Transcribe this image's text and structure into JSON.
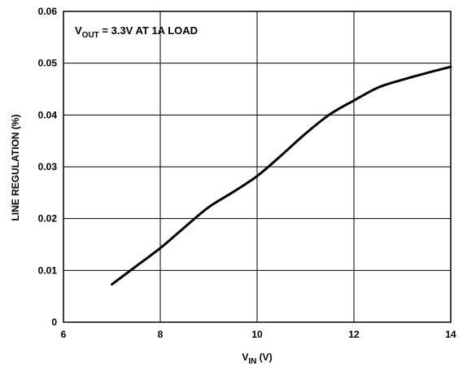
{
  "chart_data": {
    "type": "line",
    "title": "",
    "annotation": {
      "prefix": "V",
      "sub": "OUT",
      "suffix": " = 3.3V AT 1A LOAD"
    },
    "xlabel": {
      "prefix": "V",
      "sub": "IN",
      "suffix": " (V)"
    },
    "ylabel": "LINE REGULATION (%)",
    "xlim": [
      6,
      14
    ],
    "ylim": [
      0,
      0.06
    ],
    "x_ticks": [
      6,
      8,
      10,
      12,
      14
    ],
    "x_tick_labels": [
      "6",
      "8",
      "10",
      "12",
      "14"
    ],
    "y_ticks": [
      0,
      0.01,
      0.02,
      0.03,
      0.04,
      0.05,
      0.06
    ],
    "y_tick_labels": [
      "0",
      "0.01",
      "0.02",
      "0.03",
      "0.04",
      "0.05",
      "0.06"
    ],
    "grid": true,
    "series": [
      {
        "x": [
          7.0,
          7.5,
          8.0,
          8.5,
          9.0,
          9.5,
          10.0,
          10.5,
          11.0,
          11.5,
          12.0,
          12.5,
          13.0,
          13.5,
          14.0
        ],
        "y": [
          0.0073,
          0.0108,
          0.0143,
          0.0183,
          0.0222,
          0.0251,
          0.0282,
          0.0322,
          0.0364,
          0.0401,
          0.0428,
          0.0453,
          0.0468,
          0.0481,
          0.0493
        ]
      }
    ]
  }
}
